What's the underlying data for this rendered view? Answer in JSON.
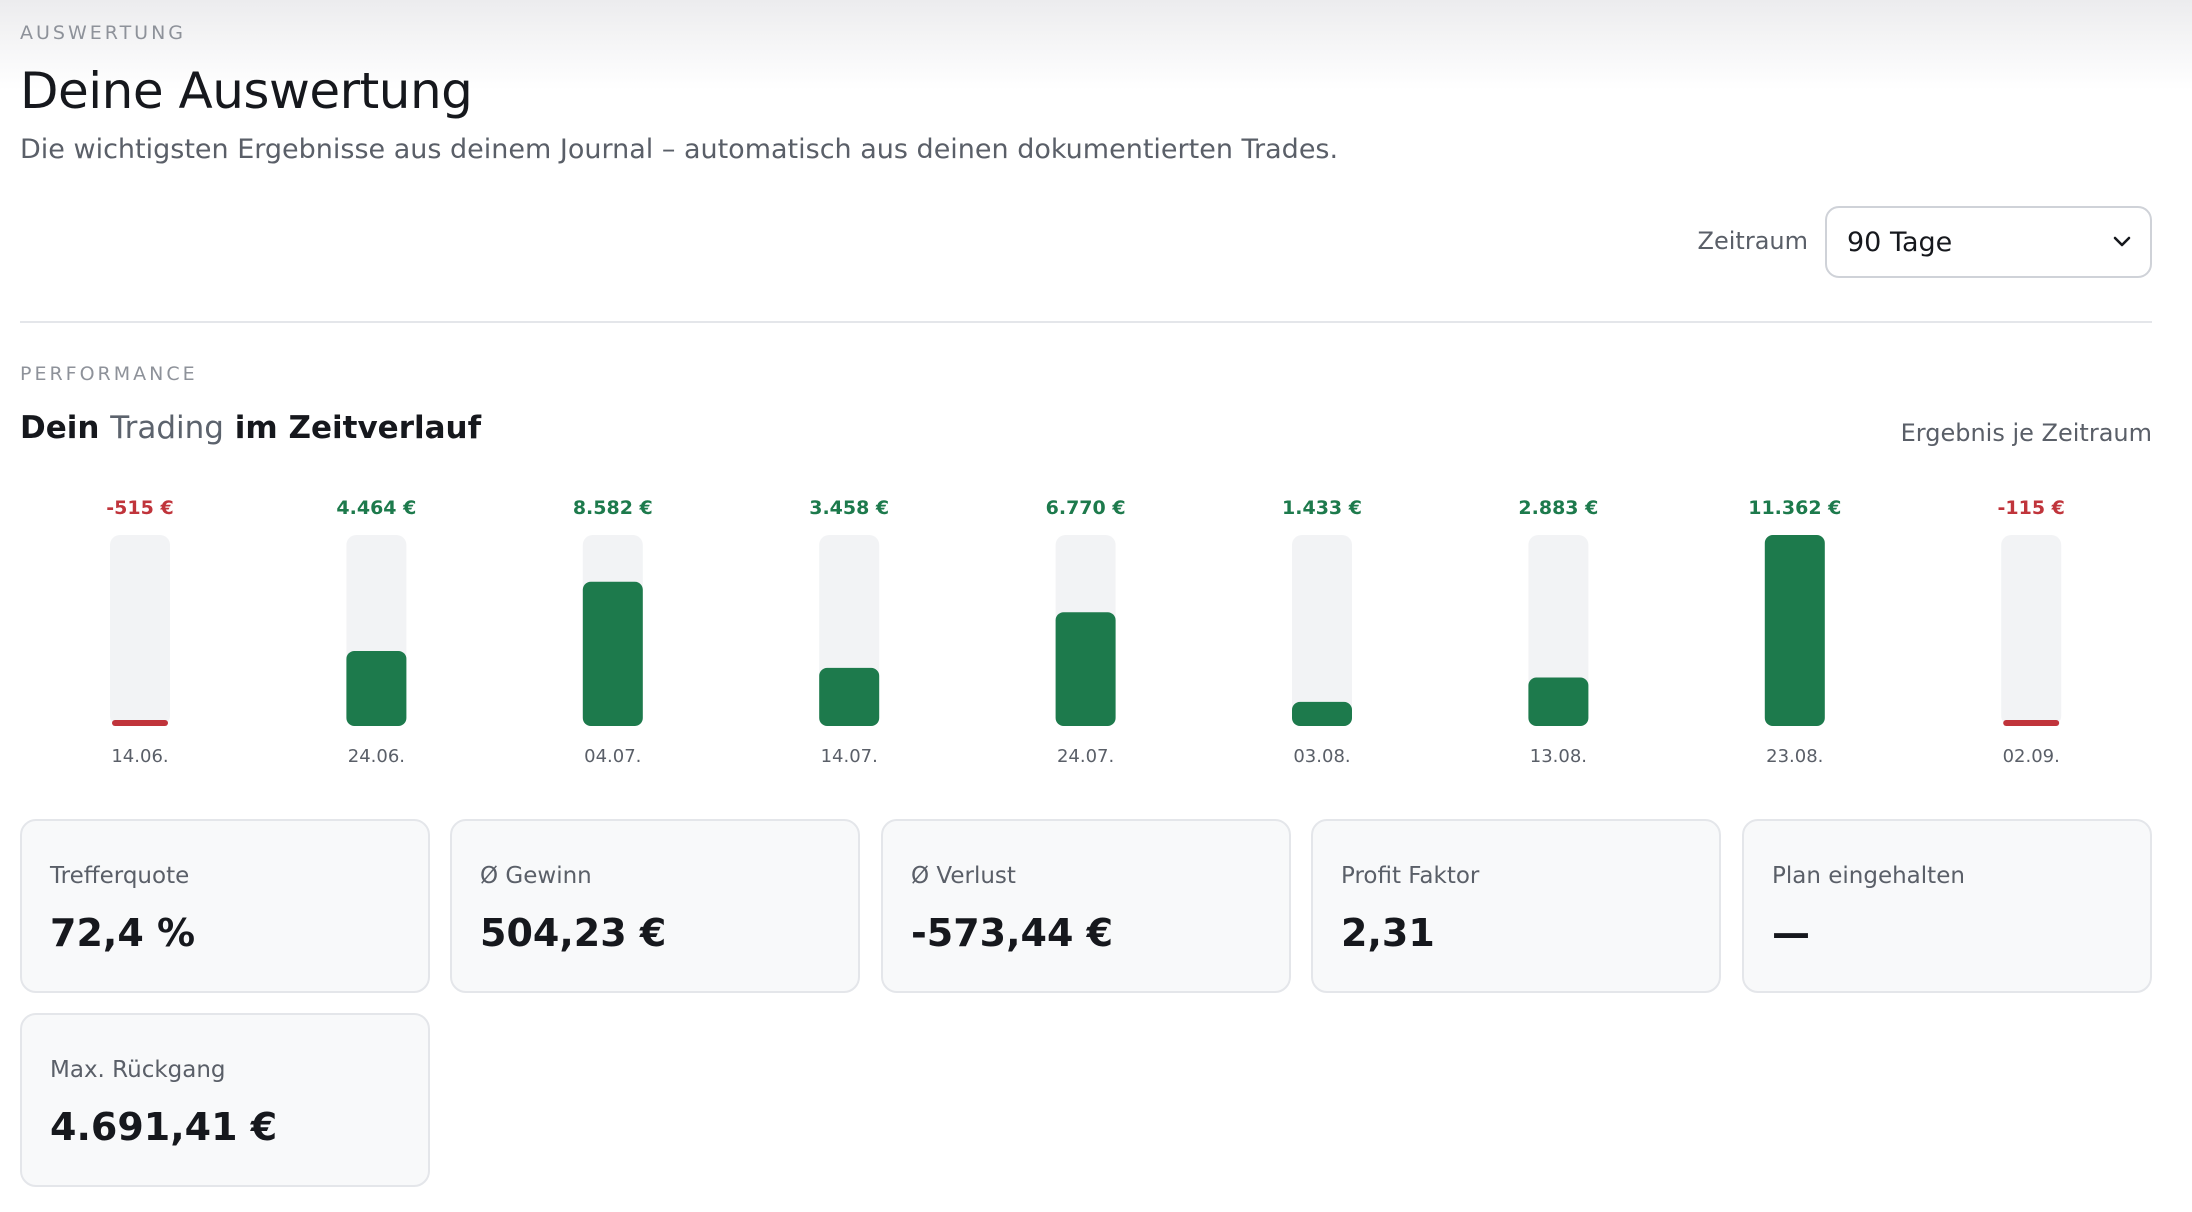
{
  "header": {
    "eyebrow": "AUSWERTUNG",
    "title": "Deine Auswertung",
    "subtitle": "Die wichtigsten Ergebnisse aus deinem Journal – automatisch aus deinen dokumentierten Trades."
  },
  "period": {
    "label": "Zeitraum",
    "selected": "90 Tage"
  },
  "performance": {
    "eyebrow": "PERFORMANCE",
    "title_pre": "Dein ",
    "title_accent": "Trading",
    "title_post": " im Zeitverlauf",
    "caption": "Ergebnis je Zeitraum"
  },
  "colors": {
    "positive": "#1d7a4c",
    "negative": "#c0343b",
    "track": "#f2f3f5"
  },
  "chart_data": {
    "type": "bar",
    "categories": [
      "14.06.",
      "24.06.",
      "04.07.",
      "14.07.",
      "24.07.",
      "03.08.",
      "13.08.",
      "23.08.",
      "02.09."
    ],
    "values": [
      -515,
      4464,
      8582,
      3458,
      6770,
      1433,
      2883,
      11362,
      -115
    ],
    "labels": [
      "-515 €",
      "4.464 €",
      "8.582 €",
      "3.458 €",
      "6.770 €",
      "1.433 €",
      "2.883 €",
      "11.362 €",
      "-115 €"
    ],
    "xlabel": "",
    "ylabel": "",
    "grid": false
  },
  "stats": [
    {
      "label": "Trefferquote",
      "value": "72,4 %"
    },
    {
      "label": "Ø Gewinn",
      "value": "504,23 €"
    },
    {
      "label": "Ø Verlust",
      "value": "-573,44 €"
    },
    {
      "label": "Profit Faktor",
      "value": "2,31"
    },
    {
      "label": "Plan eingehalten",
      "value": "—"
    },
    {
      "label": "Max. Rückgang",
      "value": "4.691,41 €"
    }
  ]
}
